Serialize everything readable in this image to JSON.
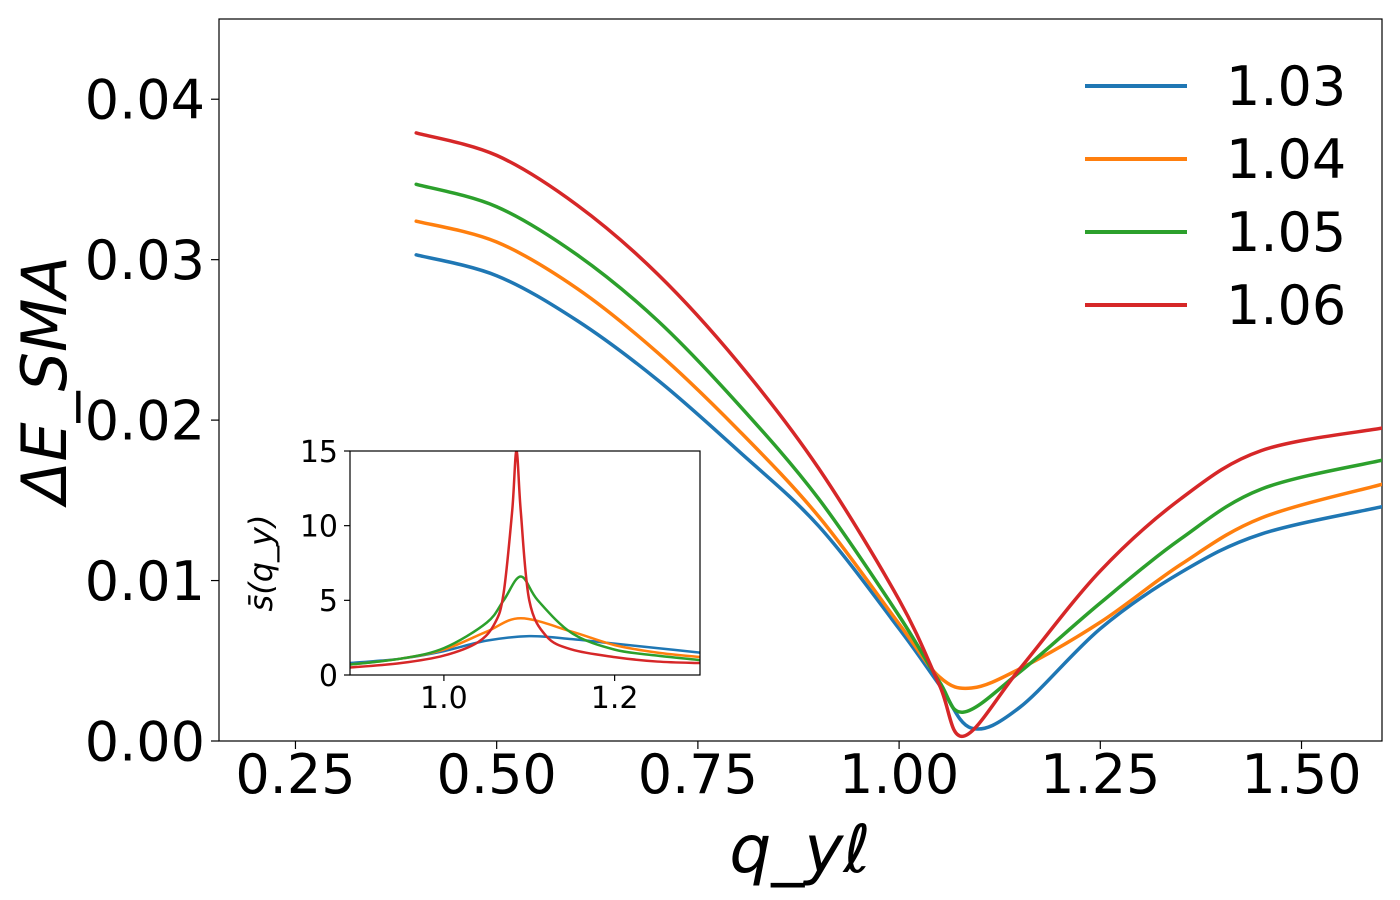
{
  "chart_data": [
    {
      "type": "line",
      "role": "main",
      "title": "",
      "xlabel": "q_yℓ",
      "ylabel": "ΔE_SMA",
      "xlim": [
        0.155,
        1.6
      ],
      "ylim": [
        0.0,
        0.045
      ],
      "xticks": [
        0.25,
        0.5,
        0.75,
        1.0,
        1.25,
        1.5
      ],
      "xtick_labels": [
        "0.25",
        "0.50",
        "0.75",
        "1.00",
        "1.25",
        "1.50"
      ],
      "yticks": [
        0.0,
        0.01,
        0.02,
        0.03,
        0.04
      ],
      "ytick_labels": [
        "0.00",
        "0.01",
        "0.02",
        "0.03",
        "0.04"
      ],
      "grid": false,
      "legend": "top-right",
      "series": [
        {
          "name": "1.03",
          "color": "#1f77b4",
          "x": [
            0.4,
            0.5,
            0.6,
            0.7,
            0.8,
            0.9,
            1.0,
            1.05,
            1.09,
            1.15,
            1.25,
            1.35,
            1.45,
            1.6
          ],
          "y": [
            0.0303,
            0.029,
            0.0262,
            0.0225,
            0.0181,
            0.0134,
            0.007,
            0.0035,
            0.0008,
            0.0021,
            0.007,
            0.0105,
            0.0129,
            0.0146
          ]
        },
        {
          "name": "1.04",
          "color": "#ff7f0e",
          "x": [
            0.4,
            0.5,
            0.6,
            0.7,
            0.8,
            0.9,
            1.0,
            1.05,
            1.09,
            1.15,
            1.25,
            1.35,
            1.45,
            1.6
          ],
          "y": [
            0.0324,
            0.0311,
            0.0282,
            0.0242,
            0.0194,
            0.014,
            0.0073,
            0.004,
            0.0033,
            0.0045,
            0.0074,
            0.011,
            0.0139,
            0.016
          ]
        },
        {
          "name": "1.05",
          "color": "#2ca02c",
          "x": [
            0.4,
            0.5,
            0.6,
            0.7,
            0.8,
            0.9,
            1.0,
            1.05,
            1.08,
            1.15,
            1.25,
            1.35,
            1.45,
            1.6
          ],
          "y": [
            0.0347,
            0.0333,
            0.0303,
            0.0262,
            0.021,
            0.0151,
            0.0078,
            0.0037,
            0.0018,
            0.0043,
            0.0086,
            0.0126,
            0.0157,
            0.0175
          ]
        },
        {
          "name": "1.06",
          "color": "#d62728",
          "x": [
            0.4,
            0.5,
            0.6,
            0.7,
            0.8,
            0.9,
            1.0,
            1.05,
            1.08,
            1.15,
            1.25,
            1.35,
            1.45,
            1.6
          ],
          "y": [
            0.0379,
            0.0365,
            0.0334,
            0.0291,
            0.0236,
            0.017,
            0.0088,
            0.0035,
            0.0003,
            0.0045,
            0.0106,
            0.0151,
            0.0181,
            0.0195
          ]
        }
      ]
    },
    {
      "type": "line",
      "role": "inset",
      "title": "",
      "xlabel": "",
      "ylabel": "s̄(q_y)",
      "xlim": [
        0.89,
        1.3
      ],
      "ylim": [
        0,
        15
      ],
      "xticks": [
        1.0,
        1.2
      ],
      "xtick_labels": [
        "1.0",
        "1.2"
      ],
      "yticks": [
        0,
        5,
        10,
        15
      ],
      "ytick_labels": [
        "0",
        "5",
        "10",
        "15"
      ],
      "series": [
        {
          "name": "1.03",
          "color": "#1f77b4",
          "x": [
            0.89,
            0.95,
            1.0,
            1.05,
            1.1,
            1.15,
            1.2,
            1.25,
            1.3
          ],
          "y": [
            0.8,
            1.1,
            1.6,
            2.3,
            2.6,
            2.4,
            2.1,
            1.8,
            1.5
          ]
        },
        {
          "name": "1.04",
          "color": "#ff7f0e",
          "x": [
            0.89,
            0.95,
            1.0,
            1.05,
            1.09,
            1.15,
            1.2,
            1.25,
            1.3
          ],
          "y": [
            0.7,
            1.1,
            1.7,
            2.9,
            3.8,
            2.9,
            2.0,
            1.5,
            1.2
          ]
        },
        {
          "name": "1.05",
          "color": "#2ca02c",
          "x": [
            0.89,
            0.95,
            1.0,
            1.05,
            1.07,
            1.09,
            1.11,
            1.15,
            1.2,
            1.25,
            1.3
          ],
          "y": [
            0.7,
            1.1,
            1.8,
            3.5,
            5.0,
            6.6,
            5.0,
            2.8,
            1.7,
            1.3,
            1.0
          ]
        },
        {
          "name": "1.06",
          "color": "#d62728",
          "x": [
            0.89,
            0.95,
            1.0,
            1.04,
            1.06,
            1.07,
            1.08,
            1.085,
            1.09,
            1.1,
            1.12,
            1.15,
            1.2,
            1.25,
            1.3
          ],
          "y": [
            0.5,
            0.8,
            1.3,
            2.2,
            3.5,
            5.5,
            11.0,
            15.0,
            11.0,
            5.0,
            2.6,
            1.7,
            1.2,
            0.9,
            0.8
          ]
        }
      ]
    }
  ]
}
